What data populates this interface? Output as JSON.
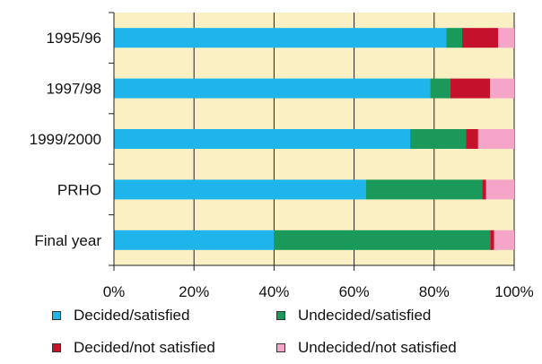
{
  "chart_data": {
    "type": "bar",
    "orientation": "horizontal",
    "stacked": true,
    "categories": [
      "1995/96",
      "1997/98",
      "1999/2000",
      "PRHO",
      "Final year"
    ],
    "series": [
      {
        "name": "Decided/satisfied",
        "values": [
          83,
          79,
          74,
          63,
          40
        ],
        "color": "#1fb4ea"
      },
      {
        "name": "Undecided/satisfied",
        "values": [
          4,
          5,
          14,
          29,
          54
        ],
        "color": "#1a9a5a"
      },
      {
        "name": "Decided/not satisfied",
        "values": [
          9,
          10,
          3,
          1,
          1
        ],
        "color": "#c4112c"
      },
      {
        "name": "Undecided/not satisfied",
        "values": [
          4,
          6,
          9,
          7,
          5
        ],
        "color": "#f5a6c8"
      }
    ],
    "xlim": [
      0,
      100
    ],
    "x_ticks": [
      "0%",
      "20%",
      "40%",
      "60%",
      "80%",
      "100%"
    ],
    "grid": true,
    "plot_background": "#faf0c4",
    "legend_position": "bottom"
  }
}
